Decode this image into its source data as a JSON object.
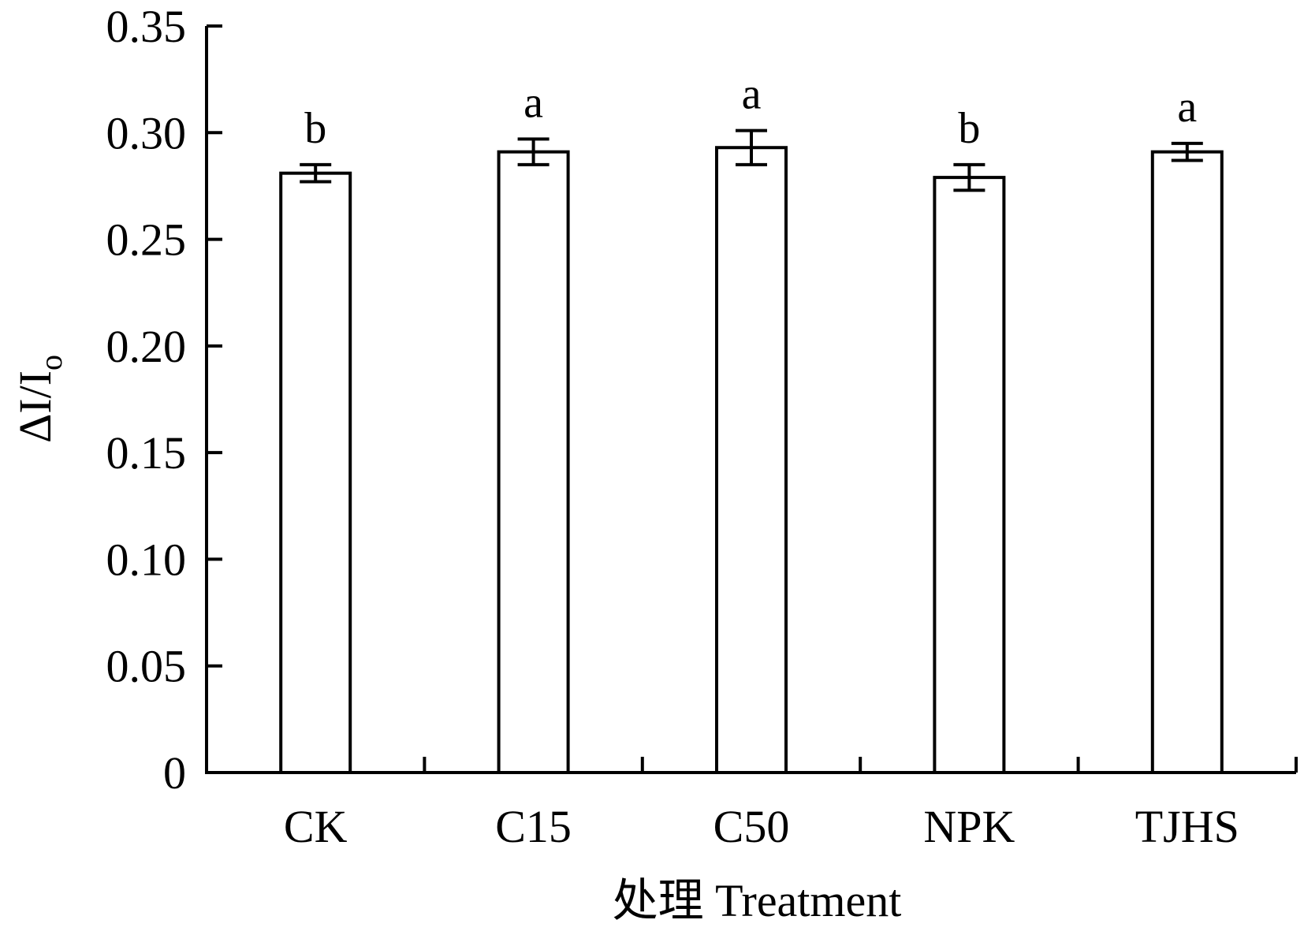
{
  "chart_data": {
    "type": "bar",
    "categories": [
      "CK",
      "C15",
      "C50",
      "NPK",
      "TJHS"
    ],
    "values": [
      0.281,
      0.291,
      0.293,
      0.279,
      0.291
    ],
    "errors": [
      0.004,
      0.006,
      0.008,
      0.006,
      0.004
    ],
    "significance": [
      "b",
      "a",
      "a",
      "b",
      "a"
    ],
    "ylim": [
      0,
      0.35
    ],
    "yticks": [
      "0",
      "0.05",
      "0.10",
      "0.15",
      "0.20",
      "0.25",
      "0.30",
      "0.35"
    ],
    "ytick_values": [
      0,
      0.05,
      0.1,
      0.15,
      0.2,
      0.25,
      0.3,
      0.35
    ],
    "xlabel": "处理 Treatment",
    "ylabel_main": "ΔI/I",
    "ylabel_sub": "o",
    "bar_fill": "#ffffff",
    "bar_stroke": "#000000",
    "grid": false
  }
}
